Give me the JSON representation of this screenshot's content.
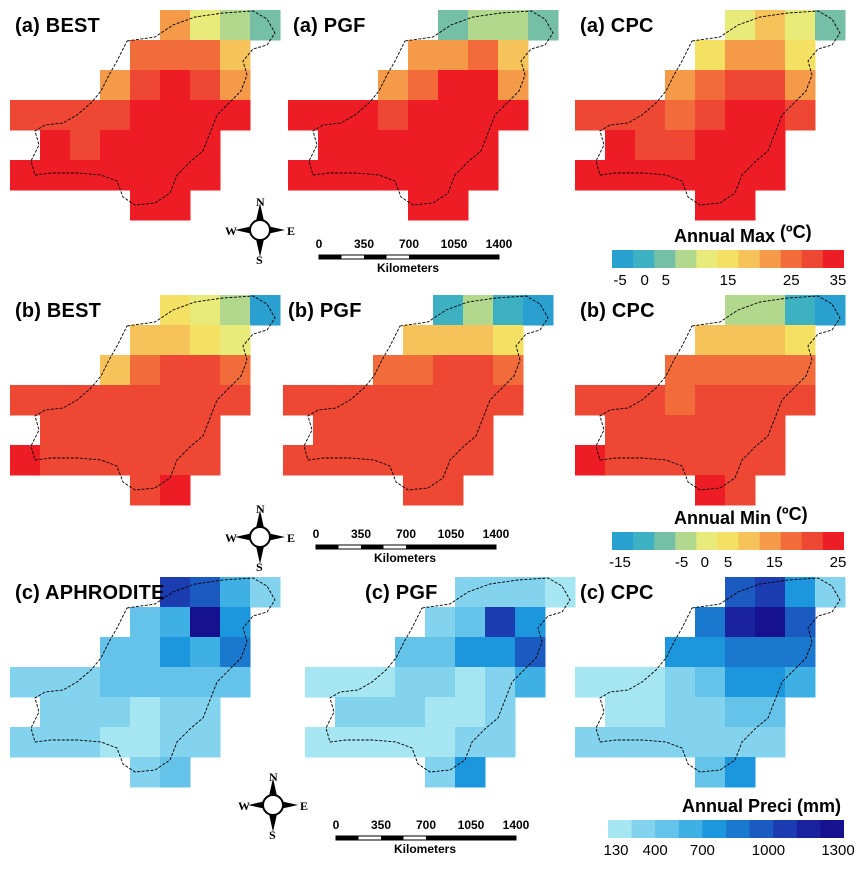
{
  "panels": [
    {
      "title": "(a) BEST",
      "var": "tmax",
      "vals": [
        [
          null,
          null,
          null,
          null,
          null,
          20,
          12,
          7,
          2
        ],
        [
          null,
          null,
          null,
          null,
          25,
          25,
          25,
          18,
          null
        ],
        [
          null,
          null,
          null,
          20,
          30,
          32,
          30,
          20,
          null
        ],
        [
          28,
          28,
          28,
          30,
          32,
          32,
          32,
          32,
          null
        ],
        [
          null,
          32,
          30,
          33,
          34,
          33,
          33,
          null,
          null
        ],
        [
          33,
          33,
          33,
          34,
          34,
          34,
          32,
          null,
          null
        ],
        [
          null,
          null,
          null,
          null,
          33,
          33,
          null,
          null,
          null
        ]
      ]
    },
    {
      "title": "(a) PGF",
      "var": "tmax",
      "vals": [
        [
          null,
          null,
          null,
          null,
          null,
          3,
          8,
          5,
          2
        ],
        [
          null,
          null,
          null,
          null,
          20,
          22,
          25,
          18,
          null
        ],
        [
          null,
          null,
          null,
          22,
          27,
          32,
          32,
          22,
          null
        ],
        [
          32,
          32,
          32,
          28,
          33,
          33,
          33,
          33,
          null
        ],
        [
          null,
          33,
          33,
          33,
          34,
          34,
          33,
          null,
          null
        ],
        [
          33,
          33,
          33,
          34,
          34,
          34,
          33,
          null,
          null
        ],
        [
          null,
          null,
          null,
          null,
          33,
          34,
          null,
          null,
          null
        ]
      ]
    },
    {
      "title": "(a) CPC",
      "var": "tmax",
      "vals": [
        [
          null,
          null,
          null,
          null,
          null,
          10,
          17,
          10,
          2
        ],
        [
          null,
          null,
          null,
          null,
          15,
          20,
          20,
          15,
          null
        ],
        [
          null,
          null,
          null,
          20,
          25,
          28,
          28,
          22,
          null
        ],
        [
          28,
          28,
          28,
          25,
          30,
          32,
          32,
          30,
          null
        ],
        [
          null,
          33,
          30,
          30,
          32,
          32,
          32,
          null,
          null
        ],
        [
          33,
          33,
          33,
          33,
          33,
          33,
          33,
          null,
          null
        ],
        [
          null,
          null,
          null,
          null,
          34,
          34,
          null,
          null,
          null
        ]
      ]
    },
    {
      "title": "(b) BEST",
      "var": "tmin",
      "vals": [
        [
          null,
          null,
          null,
          null,
          null,
          5,
          2,
          -3,
          -12
        ],
        [
          null,
          null,
          null,
          null,
          10,
          10,
          5,
          3,
          null
        ],
        [
          null,
          null,
          null,
          10,
          17,
          20,
          20,
          17,
          null
        ],
        [
          19,
          19,
          19,
          19,
          21,
          21,
          21,
          21,
          null
        ],
        [
          null,
          21,
          19,
          21,
          21,
          21,
          21,
          null,
          null
        ],
        [
          24,
          21,
          21,
          21,
          21,
          21,
          21,
          null,
          null
        ],
        [
          null,
          null,
          null,
          null,
          21,
          24,
          null,
          null,
          null
        ]
      ]
    },
    {
      "title": "(b) PGF",
      "var": "tmin",
      "vals": [
        [
          null,
          null,
          null,
          null,
          null,
          -8,
          -3,
          -8,
          -12
        ],
        [
          null,
          null,
          null,
          null,
          8,
          10,
          10,
          5,
          null
        ],
        [
          null,
          null,
          null,
          15,
          15,
          20,
          20,
          17,
          null
        ],
        [
          21,
          21,
          21,
          21,
          21,
          21,
          21,
          21,
          null
        ],
        [
          null,
          21,
          21,
          21,
          21,
          21,
          21,
          null,
          null
        ],
        [
          21,
          21,
          21,
          21,
          21,
          21,
          21,
          null,
          null
        ],
        [
          null,
          null,
          null,
          null,
          21,
          21,
          null,
          null,
          null
        ]
      ]
    },
    {
      "title": "(b) CPC",
      "var": "tmin",
      "vals": [
        [
          null,
          null,
          null,
          null,
          null,
          -3,
          -3,
          -8,
          -12
        ],
        [
          null,
          null,
          null,
          null,
          8,
          10,
          8,
          5,
          null
        ],
        [
          null,
          null,
          null,
          15,
          17,
          17,
          17,
          15,
          null
        ],
        [
          19,
          19,
          19,
          17,
          21,
          21,
          21,
          19,
          null
        ],
        [
          null,
          21,
          21,
          21,
          21,
          21,
          21,
          null,
          null
        ],
        [
          24,
          21,
          21,
          21,
          21,
          21,
          21,
          null,
          null
        ],
        [
          null,
          null,
          null,
          null,
          24,
          21,
          null,
          null,
          null
        ]
      ]
    },
    {
      "title": "(c) APHRODITE",
      "var": "precip",
      "vals": [
        [
          null,
          null,
          null,
          null,
          null,
          1000,
          850,
          500,
          300
        ],
        [
          null,
          null,
          null,
          null,
          400,
          500,
          1300,
          600,
          null
        ],
        [
          null,
          null,
          null,
          400,
          400,
          700,
          550,
          750,
          null
        ],
        [
          280,
          280,
          280,
          450,
          450,
          400,
          400,
          400,
          null
        ],
        [
          null,
          280,
          280,
          280,
          200,
          280,
          280,
          null,
          null
        ],
        [
          280,
          280,
          280,
          200,
          200,
          280,
          280,
          null,
          null
        ],
        [
          null,
          null,
          null,
          null,
          280,
          450,
          null,
          null,
          null
        ]
      ]
    },
    {
      "title": "(c) PGF",
      "var": "precip",
      "vals": [
        [
          null,
          null,
          null,
          null,
          null,
          300,
          300,
          300,
          200
        ],
        [
          null,
          null,
          null,
          null,
          300,
          400,
          950,
          600,
          null
        ],
        [
          null,
          null,
          null,
          400,
          400,
          600,
          700,
          850,
          null
        ],
        [
          180,
          180,
          180,
          280,
          280,
          200,
          300,
          550,
          null
        ],
        [
          null,
          280,
          280,
          280,
          200,
          200,
          280,
          null,
          null
        ],
        [
          180,
          180,
          180,
          200,
          200,
          280,
          280,
          null,
          null
        ],
        [
          null,
          null,
          null,
          null,
          280,
          650,
          null,
          null,
          null
        ]
      ]
    },
    {
      "title": "(c) CPC",
      "var": "precip",
      "vals": [
        [
          null,
          null,
          null,
          null,
          null,
          850,
          950,
          600,
          300
        ],
        [
          null,
          null,
          null,
          null,
          800,
          1100,
          1200,
          900,
          null
        ],
        [
          null,
          null,
          null,
          600,
          700,
          750,
          800,
          800,
          null
        ],
        [
          200,
          200,
          200,
          280,
          450,
          600,
          600,
          550,
          null
        ],
        [
          null,
          200,
          200,
          280,
          280,
          400,
          400,
          null,
          null
        ],
        [
          280,
          280,
          280,
          280,
          280,
          280,
          280,
          null,
          null
        ],
        [
          null,
          null,
          null,
          null,
          450,
          650,
          null,
          null,
          null
        ]
      ]
    }
  ],
  "legends": {
    "tmax": {
      "title": "Annual Max",
      "unit": "(ºC)",
      "colors": [
        "#2aa0d0",
        "#3db0c2",
        "#74bfa6",
        "#b2d88e",
        "#e8ea7a",
        "#f4e063",
        "#f6c25a",
        "#f49a48",
        "#f26b3a",
        "#ee4733",
        "#ee1c25"
      ],
      "ticks": [
        {
          "label": "-5",
          "pos": 0
        },
        {
          "label": "0",
          "pos": 1.55
        },
        {
          "label": "5",
          "pos": 2.55
        },
        {
          "label": "15",
          "pos": 5.5
        },
        {
          "label": "25",
          "pos": 8.5
        },
        {
          "label": "35",
          "pos": 11
        }
      ],
      "min": -7,
      "max": 35
    },
    "tmin": {
      "title": "Annual Min",
      "unit": "(ºC)",
      "colors": [
        "#2aa0d0",
        "#3db0c2",
        "#74bfa6",
        "#b2d88e",
        "#e8ea7a",
        "#f4e063",
        "#f6c25a",
        "#f49a48",
        "#f26b3a",
        "#ee4733",
        "#ee1c25"
      ],
      "ticks": [
        {
          "label": "-15",
          "pos": 0
        },
        {
          "label": "-5",
          "pos": 3.3
        },
        {
          "label": "0",
          "pos": 4.4
        },
        {
          "label": "5",
          "pos": 5.5
        },
        {
          "label": "15",
          "pos": 7.7
        },
        {
          "label": "25",
          "pos": 11
        }
      ],
      "min": -15,
      "max": 25
    },
    "precip": {
      "title": "Annual Preci (mm)",
      "unit": "",
      "colors": [
        "#a6e6f3",
        "#84d3ee",
        "#65c3ea",
        "#3fb0e3",
        "#1c97dd",
        "#1a78cf",
        "#1b5ac1",
        "#1c3cb2",
        "#1a22a0",
        "#15118f"
      ],
      "ticks": [
        {
          "label": "130",
          "pos": 0
        },
        {
          "label": "400",
          "pos": 2
        },
        {
          "label": "700",
          "pos": 4
        },
        {
          "label": "1000",
          "pos": 6.8
        },
        {
          "label": "1300",
          "pos": 10
        }
      ],
      "min": 130,
      "max": 1300
    }
  },
  "scalebar": {
    "labels": [
      "0",
      "350",
      "700",
      "1050",
      "1400"
    ],
    "unit": "Kilometers"
  },
  "compass": {
    "n": "N",
    "s": "S",
    "e": "E",
    "w": "W"
  }
}
